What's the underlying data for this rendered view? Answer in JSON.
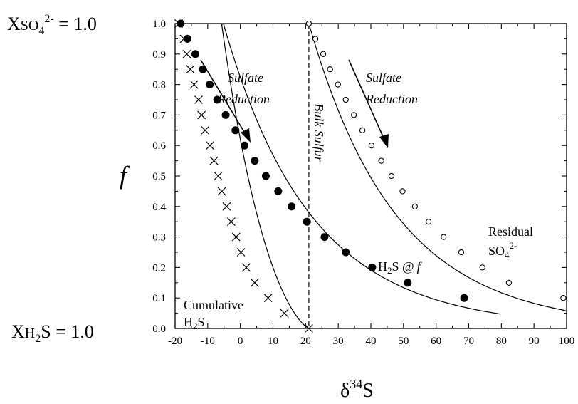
{
  "chart_data": {
    "type": "line",
    "xlabel_base": "δ",
    "xlabel_sup": "34",
    "xlabel_tail": "S",
    "ylabel": "f",
    "xlim": [
      -20,
      100
    ],
    "ylim": [
      0,
      1
    ],
    "xticks": [
      "-20",
      "-10",
      "0",
      "10",
      "20",
      "30",
      "40",
      "50",
      "60",
      "70",
      "80",
      "90",
      "100"
    ],
    "yticks": [
      "0.0",
      "0.1",
      "0.2",
      "0.3",
      "0.4",
      "0.5",
      "0.6",
      "0.7",
      "0.8",
      "0.9",
      "1.0"
    ],
    "top_left_label": {
      "base": "X",
      "sub": "SO",
      "sub2": "4",
      "sup": "2-",
      "tail": " = 1.0"
    },
    "bottom_left_label": {
      "base": "X",
      "sub": "H",
      "sub2": "2",
      "tail": "S = 1.0"
    },
    "bulk_sulfur": {
      "x": 21,
      "label": "Bulk Sulfur"
    },
    "annotations": {
      "sulfate_reduction_1_line1": "Sulfate",
      "sulfate_reduction_1_line2": "Reduction",
      "sulfate_reduction_2_line1": "Sulfate",
      "sulfate_reduction_2_line2": "Reduction",
      "residual_line1": "Residual",
      "residual_line2_base": "SO",
      "residual_line2_sub": "4",
      "residual_line2_sup": "2-",
      "h2s_f_base": "H",
      "h2s_f_sub": "2",
      "h2s_f_tail": "S @",
      "h2s_f_italic": "f",
      "cumulative_line1": "Cumulative",
      "cumulative_line2_base": "H",
      "cumulative_line2_sub": "2",
      "cumulative_line2_tail": "S"
    },
    "series": [
      {
        "marker": "open-circle",
        "color": "#000000",
        "points": [
          [
            21,
            1.0
          ],
          [
            23,
            0.95
          ],
          [
            25.4,
            0.9
          ],
          [
            27.5,
            0.85
          ],
          [
            29.9,
            0.8
          ],
          [
            32.3,
            0.75
          ],
          [
            34.8,
            0.7
          ],
          [
            37.4,
            0.65
          ],
          [
            40.2,
            0.6
          ],
          [
            43.2,
            0.55
          ],
          [
            46.3,
            0.5
          ],
          [
            49.7,
            0.45
          ],
          [
            53.5,
            0.4
          ],
          [
            57.7,
            0.35
          ],
          [
            62.3,
            0.3
          ],
          [
            67.7,
            0.25
          ],
          [
            74.2,
            0.2
          ],
          [
            82.3,
            0.15
          ],
          [
            99,
            0.1
          ]
        ]
      },
      {
        "marker": "filled-circle",
        "color": "#000000",
        "points": [
          [
            -18.3,
            1.0
          ],
          [
            -16.2,
            0.95
          ],
          [
            -13.8,
            0.9
          ],
          [
            -11.5,
            0.85
          ],
          [
            -9.4,
            0.8
          ],
          [
            -7.1,
            0.75
          ],
          [
            -4.5,
            0.7
          ],
          [
            -1.5,
            0.65
          ],
          [
            1.3,
            0.6
          ],
          [
            4.4,
            0.55
          ],
          [
            7.8,
            0.5
          ],
          [
            11.6,
            0.45
          ],
          [
            15.7,
            0.4
          ],
          [
            20.4,
            0.35
          ],
          [
            25.8,
            0.3
          ],
          [
            32.3,
            0.25
          ],
          [
            40.4,
            0.2
          ],
          [
            51.3,
            0.15
          ],
          [
            68.6,
            0.1
          ]
        ]
      },
      {
        "marker": "x",
        "color": "#000000",
        "points": [
          [
            -18.9,
            1.0
          ],
          [
            -17.3,
            0.95
          ],
          [
            -16.4,
            0.9
          ],
          [
            -15.3,
            0.85
          ],
          [
            -14.2,
            0.8
          ],
          [
            -12.8,
            0.75
          ],
          [
            -11.9,
            0.7
          ],
          [
            -10.8,
            0.65
          ],
          [
            -9.3,
            0.6
          ],
          [
            -8.1,
            0.55
          ],
          [
            -6.8,
            0.5
          ],
          [
            -5.7,
            0.45
          ],
          [
            -4.2,
            0.4
          ],
          [
            -2.8,
            0.35
          ],
          [
            -1.3,
            0.3
          ],
          [
            0.2,
            0.25
          ],
          [
            1.8,
            0.2
          ],
          [
            4.4,
            0.15
          ],
          [
            8.5,
            0.1
          ],
          [
            13.5,
            0.05
          ],
          [
            21,
            0.0
          ]
        ]
      }
    ],
    "curve_fits": [
      {
        "name": "residual-curve",
        "kind": "residual",
        "x0": 21.0,
        "alpha": 0.9738,
        "fmin": 0.1,
        "xmax_extend": 100
      },
      {
        "name": "instant-curve",
        "kind": "instant",
        "x0": 21.0,
        "alpha": 0.9738,
        "fmin": 0.055,
        "xmax_extend": 100
      },
      {
        "name": "cumulative-curve",
        "kind": "cumulative",
        "x0": 21.0,
        "alpha": 0.9738,
        "fmin": 0.0
      }
    ]
  }
}
